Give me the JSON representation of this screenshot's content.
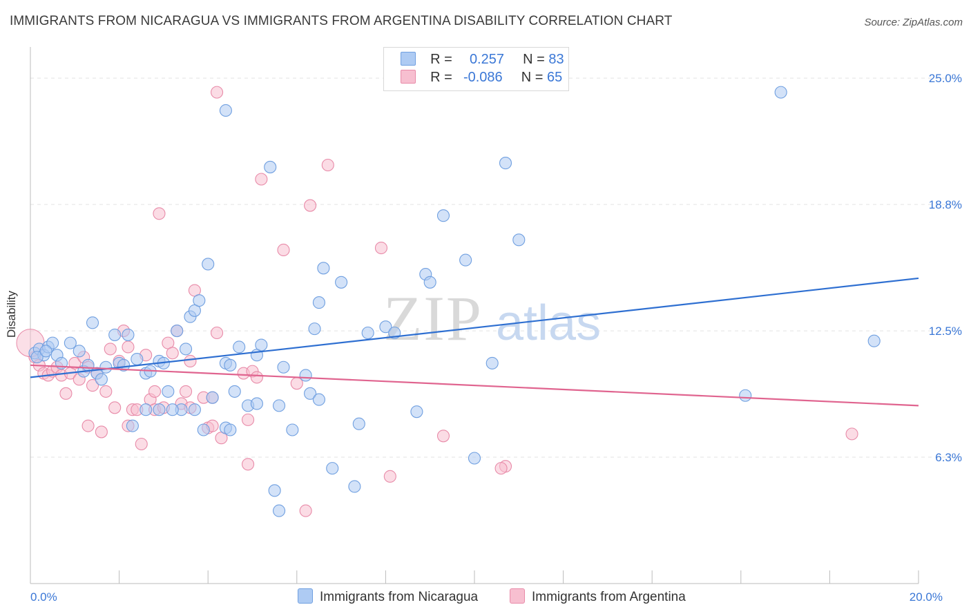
{
  "header": {
    "title": "IMMIGRANTS FROM NICARAGUA VS IMMIGRANTS FROM ARGENTINA DISABILITY CORRELATION CHART",
    "source": "Source: ZipAtlas.com"
  },
  "legend": {
    "rows": [
      {
        "r_label": "R =",
        "r_value": "0.257",
        "n_label": "N =",
        "n_value": "83"
      },
      {
        "r_label": "R =",
        "r_value": "-0.086",
        "n_label": "N =",
        "n_value": "65"
      }
    ]
  },
  "bottom_legend": {
    "series1": "Immigrants from Nicaragua",
    "series2": "Immigrants from Argentina"
  },
  "colors": {
    "blue_fill": "#aecbf3",
    "blue_stroke": "#6f9fe0",
    "blue_line": "#2e6fd1",
    "pink_fill": "#f7bfd0",
    "pink_stroke": "#e88aa8",
    "pink_line": "#e0648f",
    "tick_label": "#3a77d6",
    "grid": "#e3e3e3"
  },
  "chart_data": {
    "type": "scatter",
    "title": "IMMIGRANTS FROM NICARAGUA VS IMMIGRANTS FROM ARGENTINA DISABILITY CORRELATION CHART",
    "xlabel": "",
    "ylabel": "Disability",
    "xlim": [
      0,
      20
    ],
    "ylim": [
      0,
      26.2
    ],
    "x_tick_labels": [
      {
        "value": 0,
        "label": "0.0%"
      },
      {
        "value": 20,
        "label": "20.0%"
      }
    ],
    "y_tick_labels": [
      {
        "value": 6.25,
        "label": "6.3%"
      },
      {
        "value": 12.5,
        "label": "12.5%"
      },
      {
        "value": 18.75,
        "label": "18.8%"
      },
      {
        "value": 25.0,
        "label": "25.0%"
      }
    ],
    "x_minor_ticks": [
      2,
      4,
      6,
      8,
      10,
      12,
      14,
      16,
      18
    ],
    "watermark": "ZIPatlas",
    "series": [
      {
        "name": "Immigrants from Nicaragua",
        "color": "blue",
        "trend": {
          "x": [
            0,
            20
          ],
          "y": [
            10.2,
            15.1
          ]
        },
        "points": [
          [
            0.1,
            11.4
          ],
          [
            0.2,
            11.6
          ],
          [
            0.3,
            11.3
          ],
          [
            0.4,
            11.7
          ],
          [
            0.5,
            11.9
          ],
          [
            0.6,
            11.3
          ],
          [
            0.7,
            10.9
          ],
          [
            0.9,
            11.9
          ],
          [
            1.1,
            11.5
          ],
          [
            1.2,
            10.5
          ],
          [
            1.4,
            12.9
          ],
          [
            1.5,
            10.4
          ],
          [
            1.6,
            10.1
          ],
          [
            1.7,
            10.7
          ],
          [
            1.9,
            12.3
          ],
          [
            2.0,
            10.9
          ],
          [
            2.2,
            12.3
          ],
          [
            2.3,
            7.8
          ],
          [
            2.4,
            11.1
          ],
          [
            2.6,
            10.4
          ],
          [
            2.6,
            8.6
          ],
          [
            2.7,
            10.5
          ],
          [
            2.9,
            11.0
          ],
          [
            2.9,
            8.6
          ],
          [
            3.0,
            10.9
          ],
          [
            3.1,
            9.5
          ],
          [
            3.3,
            12.5
          ],
          [
            3.4,
            8.6
          ],
          [
            3.5,
            11.6
          ],
          [
            3.6,
            13.2
          ],
          [
            3.7,
            13.5
          ],
          [
            3.7,
            8.6
          ],
          [
            3.8,
            14.0
          ],
          [
            3.9,
            7.6
          ],
          [
            4.0,
            15.8
          ],
          [
            4.1,
            9.2
          ],
          [
            4.4,
            10.9
          ],
          [
            4.4,
            7.7
          ],
          [
            4.5,
            7.6
          ],
          [
            4.4,
            23.4
          ],
          [
            4.5,
            10.8
          ],
          [
            4.6,
            9.5
          ],
          [
            4.7,
            11.7
          ],
          [
            4.9,
            8.8
          ],
          [
            5.1,
            8.9
          ],
          [
            5.1,
            11.3
          ],
          [
            5.2,
            11.8
          ],
          [
            5.4,
            20.6
          ],
          [
            5.5,
            4.6
          ],
          [
            5.6,
            3.6
          ],
          [
            5.6,
            8.8
          ],
          [
            5.7,
            10.7
          ],
          [
            5.9,
            7.6
          ],
          [
            6.2,
            10.3
          ],
          [
            6.3,
            9.4
          ],
          [
            6.4,
            12.6
          ],
          [
            6.5,
            9.1
          ],
          [
            6.5,
            13.9
          ],
          [
            6.6,
            15.6
          ],
          [
            6.8,
            5.7
          ],
          [
            7.0,
            14.9
          ],
          [
            7.3,
            4.8
          ],
          [
            7.4,
            7.9
          ],
          [
            7.6,
            12.4
          ],
          [
            8.0,
            12.7
          ],
          [
            8.2,
            12.4
          ],
          [
            8.7,
            8.5
          ],
          [
            8.9,
            15.3
          ],
          [
            9.0,
            14.9
          ],
          [
            9.3,
            18.2
          ],
          [
            9.8,
            16.0
          ],
          [
            10.0,
            6.2
          ],
          [
            10.4,
            10.9
          ],
          [
            10.7,
            20.8
          ],
          [
            11.0,
            17.0
          ],
          [
            16.9,
            24.3
          ],
          [
            16.1,
            9.3
          ],
          [
            19.0,
            12.0
          ],
          [
            0.15,
            11.2
          ],
          [
            0.35,
            11.5
          ],
          [
            1.3,
            10.8
          ],
          [
            2.1,
            10.8
          ],
          [
            3.2,
            8.6
          ]
        ]
      },
      {
        "name": "Immigrants from Argentina",
        "color": "pink",
        "trend": {
          "x": [
            0,
            20
          ],
          "y": [
            10.8,
            8.8
          ]
        },
        "points": [
          [
            0.1,
            11.2
          ],
          [
            0.2,
            10.8
          ],
          [
            0.3,
            10.4
          ],
          [
            0.4,
            10.3
          ],
          [
            0.5,
            10.5
          ],
          [
            0.6,
            10.7
          ],
          [
            0.7,
            10.3
          ],
          [
            0.8,
            9.4
          ],
          [
            0.9,
            10.4
          ],
          [
            1.0,
            10.9
          ],
          [
            1.1,
            10.1
          ],
          [
            1.2,
            11.2
          ],
          [
            1.3,
            10.7
          ],
          [
            1.3,
            7.8
          ],
          [
            1.4,
            9.8
          ],
          [
            1.5,
            10.4
          ],
          [
            1.6,
            7.5
          ],
          [
            1.7,
            9.5
          ],
          [
            1.8,
            11.6
          ],
          [
            1.9,
            8.7
          ],
          [
            2.0,
            11.0
          ],
          [
            2.1,
            12.5
          ],
          [
            2.2,
            11.7
          ],
          [
            2.2,
            7.8
          ],
          [
            2.3,
            8.6
          ],
          [
            2.4,
            8.6
          ],
          [
            2.5,
            6.9
          ],
          [
            2.6,
            11.3
          ],
          [
            2.7,
            9.1
          ],
          [
            2.8,
            9.5
          ],
          [
            2.8,
            8.6
          ],
          [
            2.9,
            18.3
          ],
          [
            3.0,
            8.7
          ],
          [
            3.1,
            11.9
          ],
          [
            3.2,
            11.4
          ],
          [
            3.3,
            12.5
          ],
          [
            3.4,
            8.9
          ],
          [
            3.5,
            9.5
          ],
          [
            3.6,
            11.0
          ],
          [
            3.6,
            8.7
          ],
          [
            3.7,
            14.5
          ],
          [
            3.9,
            9.2
          ],
          [
            4.0,
            7.7
          ],
          [
            4.1,
            7.8
          ],
          [
            4.1,
            9.2
          ],
          [
            4.2,
            12.4
          ],
          [
            4.3,
            7.2
          ],
          [
            4.2,
            24.3
          ],
          [
            4.8,
            10.4
          ],
          [
            4.9,
            5.9
          ],
          [
            4.9,
            8.1
          ],
          [
            5.0,
            10.5
          ],
          [
            5.1,
            10.2
          ],
          [
            5.2,
            20.0
          ],
          [
            5.7,
            16.5
          ],
          [
            6.0,
            9.9
          ],
          [
            6.2,
            3.6
          ],
          [
            6.3,
            18.7
          ],
          [
            6.7,
            20.7
          ],
          [
            7.9,
            16.6
          ],
          [
            8.1,
            5.3
          ],
          [
            9.3,
            7.3
          ],
          [
            10.7,
            5.8
          ],
          [
            10.6,
            5.7
          ],
          [
            18.5,
            7.4
          ]
        ]
      }
    ]
  }
}
